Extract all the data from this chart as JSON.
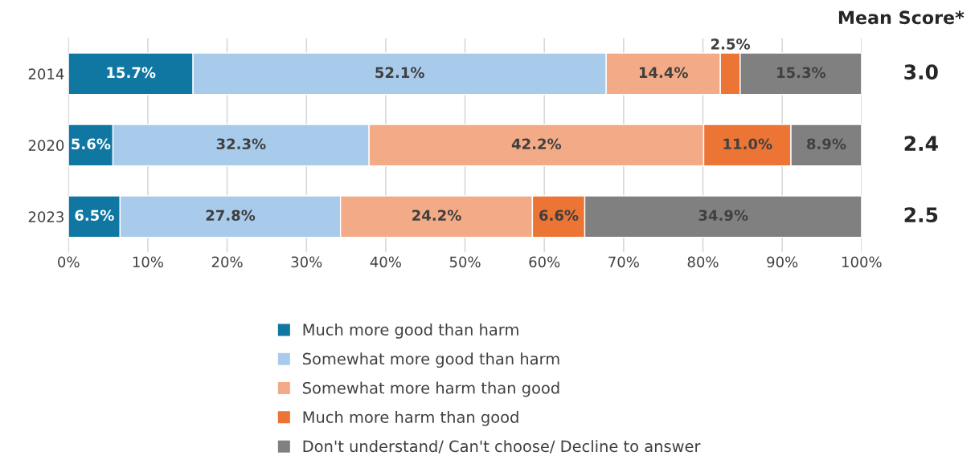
{
  "chart_data": {
    "type": "bar",
    "orientation": "horizontal",
    "stacked": true,
    "categories": [
      "2014",
      "2020",
      "2023"
    ],
    "series": [
      {
        "name": "Much more good than harm",
        "color": "#1077a3",
        "values": [
          15.7,
          5.6,
          6.5
        ],
        "value_labels": [
          "15.7%",
          "5.6%",
          "6.5%"
        ]
      },
      {
        "name": "Somewhat more good than harm",
        "color": "#a9cbeb",
        "values": [
          52.1,
          32.3,
          27.8
        ],
        "value_labels": [
          "52.1%",
          "32.3%",
          "27.8%"
        ]
      },
      {
        "name": "Somewhat more harm than good",
        "color": "#f2ab86",
        "values": [
          14.4,
          42.2,
          24.2
        ],
        "value_labels": [
          "14.4%",
          "42.2%",
          "24.2%"
        ]
      },
      {
        "name": "Much more harm than good",
        "color": "#ec7434",
        "values": [
          2.5,
          11.0,
          6.6
        ],
        "value_labels": [
          "2.5%",
          "11.0%",
          "6.6%"
        ]
      },
      {
        "name": "Don't understand/ Can't choose/ Decline to answer",
        "color": "#808080",
        "values": [
          15.3,
          8.9,
          34.9
        ],
        "value_labels": [
          "15.3%",
          "8.9%",
          "34.9%"
        ]
      }
    ],
    "xlim": [
      0,
      100
    ],
    "xticks": [
      {
        "value": 0,
        "label": "0%"
      },
      {
        "value": 10,
        "label": "10%"
      },
      {
        "value": 20,
        "label": "20%"
      },
      {
        "value": 30,
        "label": "30%"
      },
      {
        "value": 40,
        "label": "40%"
      },
      {
        "value": 50,
        "label": "50%"
      },
      {
        "value": 60,
        "label": "60%"
      },
      {
        "value": 70,
        "label": "70%"
      },
      {
        "value": 80,
        "label": "80%"
      },
      {
        "value": 90,
        "label": "90%"
      },
      {
        "value": 100,
        "label": "100%"
      }
    ],
    "grid": "x",
    "legend": "bottom",
    "annotations": [
      "Mean Score*",
      "3.0",
      "2.4",
      "2.5"
    ]
  }
}
